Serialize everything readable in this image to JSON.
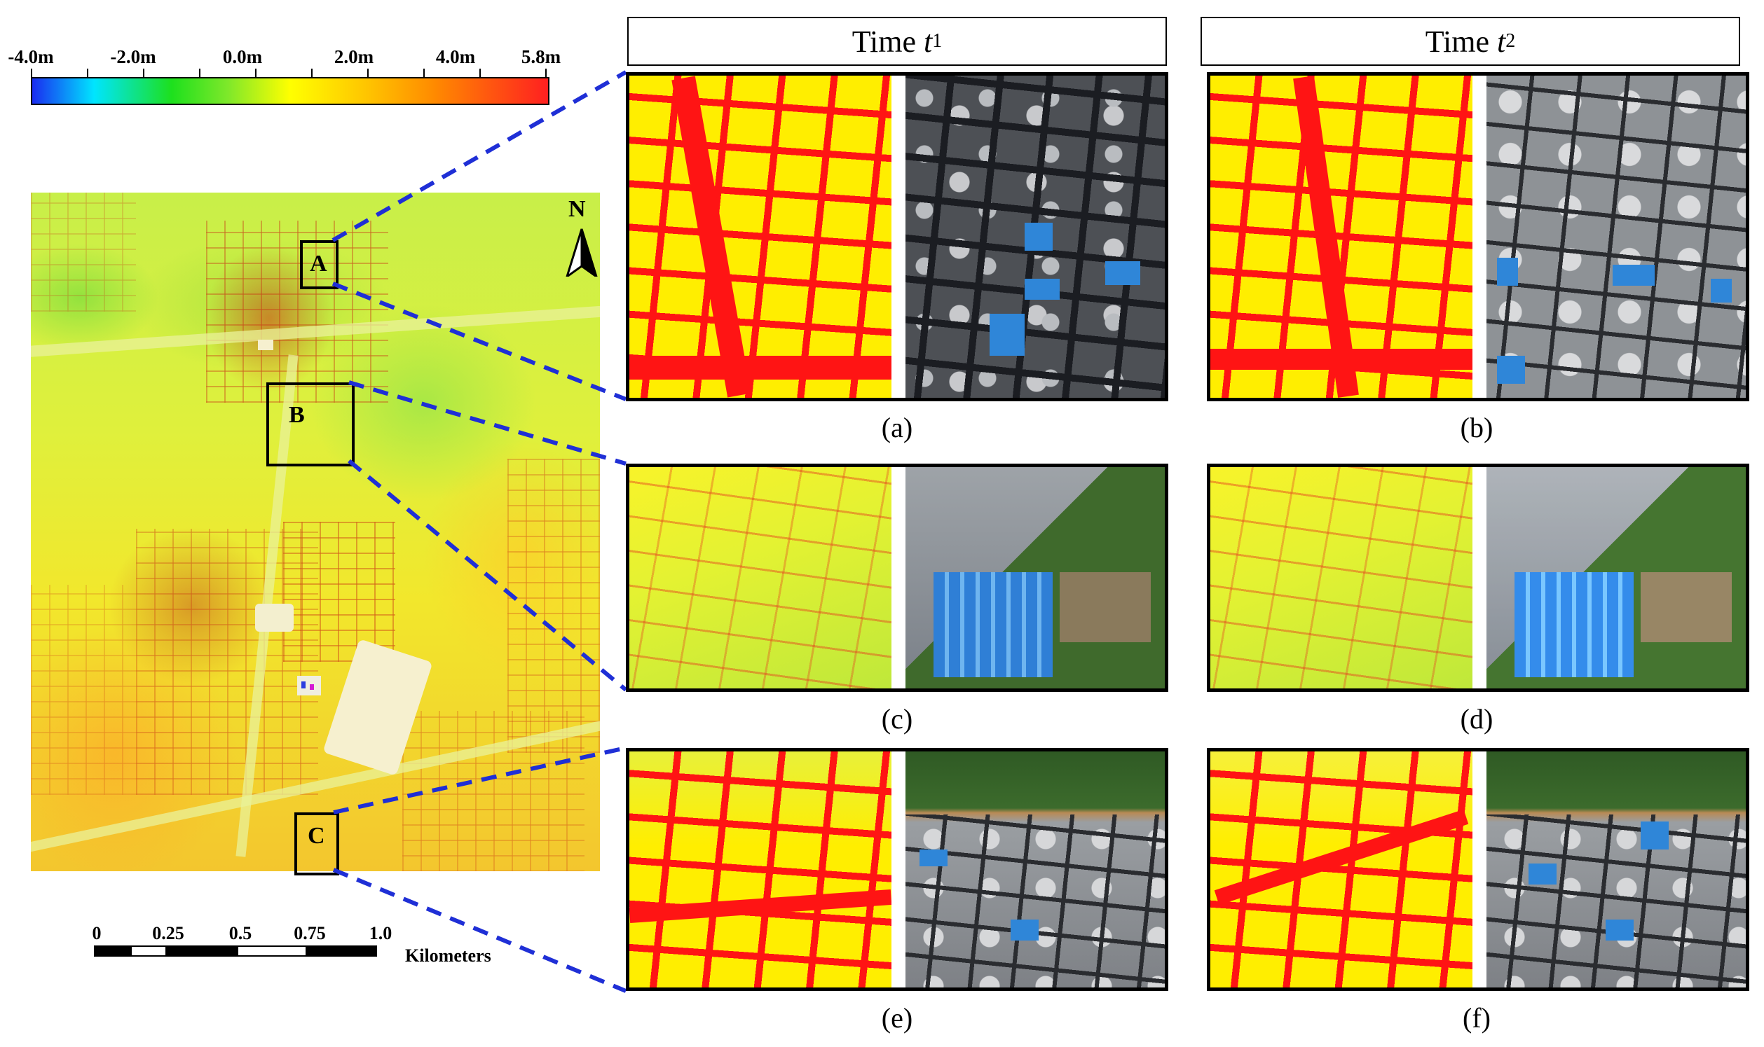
{
  "colorbar": {
    "labels": [
      "-4.0m",
      "-2.0m",
      "0.0m",
      "2.0m",
      "4.0m",
      "5.8m"
    ],
    "min": -4.0,
    "max": 5.8,
    "colors": [
      "#1a2cf0",
      "#00e5ff",
      "#1de01d",
      "#ffff00",
      "#ff8a00",
      "#ff2020"
    ]
  },
  "overview": {
    "north_label": "N",
    "boxes": [
      {
        "id": "A",
        "label": "A"
      },
      {
        "id": "B",
        "label": "B"
      },
      {
        "id": "C",
        "label": "C"
      }
    ]
  },
  "scalebar": {
    "ticks": [
      "0",
      "0.25",
      "0.5",
      "0.75",
      "1.0"
    ],
    "units": "Kilometers"
  },
  "headers": {
    "t1": {
      "prefix": "Time ",
      "var": "t",
      "sub": "1"
    },
    "t2": {
      "prefix": "Time ",
      "var": "t",
      "sub": "2"
    }
  },
  "panels": [
    {
      "id": "a",
      "caption": "(a)",
      "region": "A",
      "time": "t1"
    },
    {
      "id": "b",
      "caption": "(b)",
      "region": "A",
      "time": "t2"
    },
    {
      "id": "c",
      "caption": "(c)",
      "region": "B",
      "time": "t1"
    },
    {
      "id": "d",
      "caption": "(d)",
      "region": "B",
      "time": "t2"
    },
    {
      "id": "e",
      "caption": "(e)",
      "region": "C",
      "time": "t1"
    },
    {
      "id": "f",
      "caption": "(f)",
      "region": "C",
      "time": "t2"
    }
  ],
  "connector_color": "#1f2fd6"
}
